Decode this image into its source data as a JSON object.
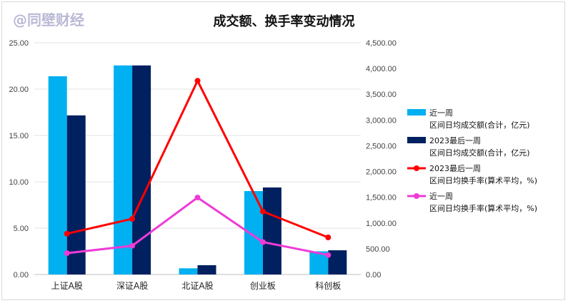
{
  "watermark": "@同壁财经",
  "chart_data": {
    "type": "bar",
    "title": "成交额、换手率变动情况",
    "categories": [
      "上证A股",
      "深证A股",
      "北证A股",
      "创业板",
      "科创板"
    ],
    "left_axis": {
      "ylim": [
        0,
        25
      ],
      "ticks": [
        "0.00",
        "5.00",
        "10.00",
        "15.00",
        "20.00",
        "25.00"
      ]
    },
    "right_axis": {
      "ylim": [
        0,
        4500
      ],
      "ticks": [
        "0.00",
        "500.00",
        "1,000.00",
        "1,500.00",
        "2,000.00",
        "2,500.00",
        "3,000.00",
        "3,500.00",
        "4,000.00",
        "4,500.00"
      ]
    },
    "grid": true,
    "legend_position": "right",
    "series": [
      {
        "name": "近一周 区间日均成交额(合计，亿元)",
        "legend_line1": "近一周",
        "legend_line2": "区间日均成交额(合计，亿元)",
        "type": "bar",
        "axis": "right",
        "color": "#00b0f0",
        "values": [
          3850,
          4060,
          120,
          1620,
          450
        ]
      },
      {
        "name": "2023最后一周 区间日均成交额(合计，亿元)",
        "legend_line1": "2023最后一周",
        "legend_line2": "区间日均成交额(合计，亿元)",
        "type": "bar",
        "axis": "right",
        "color": "#002060",
        "values": [
          3090,
          4060,
          180,
          1690,
          470
        ]
      },
      {
        "name": "2023最后一周 区间日均换手率(算术平均，%)",
        "legend_line1": "2023最后一周",
        "legend_line2": "区间日均换手率(算术平均，%)",
        "type": "line",
        "axis": "left",
        "color": "#ff0000",
        "values": [
          4.4,
          6.0,
          20.9,
          6.8,
          4.0
        ]
      },
      {
        "name": "近一周 区间日均换手率(算术平均，%)",
        "legend_line1": "近一周",
        "legend_line2": "区间日均换手率(算术平均，%)",
        "type": "line",
        "axis": "left",
        "color": "#ee3bd6",
        "values": [
          2.3,
          3.1,
          8.3,
          3.5,
          2.1
        ]
      }
    ]
  }
}
